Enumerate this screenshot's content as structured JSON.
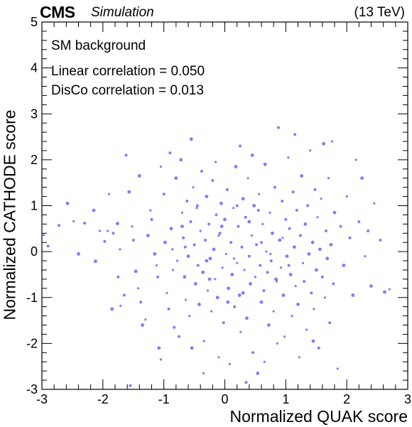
{
  "header": {
    "experiment": "CMS",
    "status": "Simulation",
    "energy": "(13 TeV)"
  },
  "annotations": {
    "sample": "SM background",
    "linear": "Linear correlation = 0.050",
    "disco": "DisCo correlation = 0.013"
  },
  "chart_data": {
    "type": "scatter",
    "xlabel": "Normalized QUAK score",
    "ylabel": "Normalized CATHODE score",
    "xlim": [
      -3,
      3
    ],
    "ylim": [
      -3,
      5
    ],
    "xticks": [
      -3,
      -2,
      -1,
      0,
      1,
      2,
      3
    ],
    "yticks": [
      -3,
      -2,
      -1,
      0,
      1,
      2,
      3,
      4,
      5
    ],
    "grid": false,
    "marker_color": "#5b5bff",
    "points": [
      [
        -2.97,
        0.36
      ],
      [
        -2.72,
        0.57
      ],
      [
        -2.58,
        1.05
      ],
      [
        -2.48,
        0.66
      ],
      [
        -2.3,
        0.62
      ],
      [
        -2.15,
        0.9
      ],
      [
        -2.05,
        0.45
      ],
      [
        -1.97,
        0.22
      ],
      [
        -2.12,
        -0.21
      ],
      [
        -1.92,
        0.45
      ],
      [
        -1.83,
        0.4
      ],
      [
        -1.76,
        0.61
      ],
      [
        -1.72,
        0.05
      ],
      [
        -1.75,
        -0.55
      ],
      [
        -1.85,
        -1.25
      ],
      [
        -1.71,
        -1.18
      ],
      [
        -1.62,
        2.1
      ],
      [
        -1.57,
        1.3
      ],
      [
        -1.52,
        0.55
      ],
      [
        -1.5,
        0.25
      ],
      [
        -1.46,
        -0.43
      ],
      [
        -1.42,
        -0.8
      ],
      [
        -1.38,
        -1.1
      ],
      [
        -1.35,
        -1.6
      ],
      [
        -1.3,
        -1.48
      ],
      [
        -1.55,
        -2.92
      ],
      [
        -1.26,
        0.35
      ],
      [
        -1.22,
        0.9
      ],
      [
        -1.2,
        0.7
      ],
      [
        -1.15,
        -0.05
      ],
      [
        -1.12,
        -0.3
      ],
      [
        -1.1,
        -0.55
      ],
      [
        -1.08,
        -2.1
      ],
      [
        -1.05,
        -2.35
      ],
      [
        -1.0,
        1.25
      ],
      [
        -0.98,
        0.2
      ],
      [
        -0.95,
        -0.9
      ],
      [
        -0.92,
        -1.25
      ],
      [
        -0.88,
        0.5
      ],
      [
        -0.86,
        0.05
      ],
      [
        -0.83,
        -1.65
      ],
      [
        -0.8,
        1.6
      ],
      [
        -0.78,
        -0.2
      ],
      [
        -0.75,
        -1.85
      ],
      [
        -0.72,
        2.0
      ],
      [
        -0.7,
        0.85
      ],
      [
        -0.68,
        0.3
      ],
      [
        -0.66,
        -0.55
      ],
      [
        -0.64,
        -1.05
      ],
      [
        -0.62,
        1.1
      ],
      [
        -0.6,
        -0.1
      ],
      [
        -0.58,
        -1.4
      ],
      [
        -0.56,
        0.65
      ],
      [
        -0.54,
        -2.1
      ],
      [
        -0.52,
        1.4
      ],
      [
        -0.5,
        0.15
      ],
      [
        -0.48,
        -0.7
      ],
      [
        -0.46,
        0.95
      ],
      [
        -0.44,
        -0.3
      ],
      [
        -0.42,
        -1.15
      ],
      [
        -0.4,
        0.45
      ],
      [
        -0.38,
        1.75
      ],
      [
        -0.36,
        -0.45
      ],
      [
        -0.34,
        -1.95
      ],
      [
        -0.32,
        0.25
      ],
      [
        -0.3,
        1.2
      ],
      [
        -0.28,
        -0.85
      ],
      [
        -0.26,
        0.6
      ],
      [
        -0.24,
        -0.15
      ],
      [
        -0.22,
        -1.3
      ],
      [
        -0.2,
        1.55
      ],
      [
        -0.18,
        0.05
      ],
      [
        -0.16,
        -0.6
      ],
      [
        -0.14,
        0.8
      ],
      [
        -0.12,
        -1.0
      ],
      [
        -0.1,
        -2.3
      ],
      [
        -0.08,
        0.4
      ],
      [
        -0.06,
        1.05
      ],
      [
        -0.04,
        -0.35
      ],
      [
        -0.02,
        -1.55
      ],
      [
        0.0,
        0.7
      ],
      [
        0.02,
        -0.05
      ],
      [
        0.04,
        1.35
      ],
      [
        0.06,
        -0.8
      ],
      [
        0.08,
        -2.45
      ],
      [
        0.1,
        0.2
      ],
      [
        0.12,
        -0.5
      ],
      [
        0.14,
        0.95
      ],
      [
        0.16,
        -1.2
      ],
      [
        0.18,
        1.85
      ],
      [
        0.2,
        -0.25
      ],
      [
        0.22,
        0.55
      ],
      [
        0.24,
        -0.95
      ],
      [
        0.26,
        -1.75
      ],
      [
        0.28,
        0.1
      ],
      [
        0.3,
        1.15
      ],
      [
        0.32,
        -0.4
      ],
      [
        0.34,
        0.75
      ],
      [
        0.36,
        -1.45
      ],
      [
        0.38,
        1.6
      ],
      [
        0.4,
        -0.1
      ],
      [
        0.42,
        -0.7
      ],
      [
        0.44,
        0.35
      ],
      [
        0.46,
        -2.2
      ],
      [
        0.48,
        1.0
      ],
      [
        0.5,
        -0.55
      ],
      [
        0.52,
        0.15
      ],
      [
        0.54,
        -2.65
      ],
      [
        0.56,
        1.25
      ],
      [
        0.58,
        -0.3
      ],
      [
        0.6,
        -1.1
      ],
      [
        0.62,
        0.6
      ],
      [
        0.64,
        -0.85
      ],
      [
        0.66,
        1.9
      ],
      [
        0.68,
        0.0
      ],
      [
        0.7,
        -0.45
      ],
      [
        0.72,
        -1.6
      ],
      [
        0.74,
        0.85
      ],
      [
        0.76,
        -0.2
      ],
      [
        0.78,
        0.4
      ],
      [
        0.8,
        -1.3
      ],
      [
        0.82,
        1.4
      ],
      [
        0.84,
        -0.6
      ],
      [
        0.86,
        -2.0
      ],
      [
        0.88,
        2.7
      ],
      [
        0.9,
        0.25
      ],
      [
        0.92,
        -0.35
      ],
      [
        0.94,
        1.1
      ],
      [
        0.96,
        -0.95
      ],
      [
        0.98,
        -1.85
      ],
      [
        1.0,
        0.7
      ],
      [
        1.02,
        -0.1
      ],
      [
        1.04,
        2.05
      ],
      [
        1.06,
        0.5
      ],
      [
        1.08,
        -0.5
      ],
      [
        1.1,
        -1.4
      ],
      [
        1.12,
        1.3
      ],
      [
        1.14,
        0.1
      ],
      [
        1.16,
        -0.75
      ],
      [
        1.18,
        0.9
      ],
      [
        1.2,
        -1.15
      ],
      [
        1.22,
        -2.3
      ],
      [
        1.24,
        0.35
      ],
      [
        1.26,
        1.65
      ],
      [
        1.28,
        -0.25
      ],
      [
        1.3,
        -0.65
      ],
      [
        1.32,
        0.6
      ],
      [
        1.34,
        -1.7
      ],
      [
        1.36,
        1.0
      ],
      [
        1.38,
        -0.05
      ],
      [
        1.4,
        2.2
      ],
      [
        1.42,
        -0.9
      ],
      [
        1.44,
        0.2
      ],
      [
        1.46,
        -1.25
      ],
      [
        1.48,
        1.35
      ],
      [
        1.5,
        -0.4
      ],
      [
        1.52,
        0.75
      ],
      [
        1.54,
        -2.1
      ],
      [
        1.56,
        0.05
      ],
      [
        1.58,
        1.15
      ],
      [
        1.6,
        -0.55
      ],
      [
        1.62,
        2.35
      ],
      [
        1.64,
        -1.0
      ],
      [
        1.66,
        0.45
      ],
      [
        1.68,
        -0.15
      ],
      [
        1.7,
        1.6
      ],
      [
        1.72,
        -1.55
      ],
      [
        1.74,
        0.15
      ],
      [
        1.76,
        2.4
      ],
      [
        1.78,
        -0.7
      ],
      [
        1.8,
        0.85
      ],
      [
        1.85,
        -2.55
      ],
      [
        1.9,
        0.55
      ],
      [
        1.95,
        -0.3
      ],
      [
        2.0,
        1.2
      ],
      [
        2.05,
        0.3
      ],
      [
        2.1,
        -0.95
      ],
      [
        2.15,
        2.0
      ],
      [
        2.2,
        0.65
      ],
      [
        2.25,
        1.6
      ],
      [
        2.3,
        -0.1
      ],
      [
        2.35,
        0.45
      ],
      [
        2.4,
        -0.75
      ],
      [
        2.45,
        1.05
      ],
      [
        2.55,
        0.25
      ],
      [
        2.62,
        -0.88
      ],
      [
        2.7,
        -0.82
      ],
      [
        -2.9,
        0.12
      ],
      [
        -2.4,
        -0.05
      ],
      [
        -1.9,
        1.25
      ],
      [
        -1.65,
        -0.95
      ],
      [
        -1.4,
        1.65
      ],
      [
        -1.05,
        1.85
      ],
      [
        -0.9,
        2.15
      ],
      [
        -0.55,
        2.45
      ],
      [
        -0.15,
        1.95
      ],
      [
        0.25,
        2.3
      ],
      [
        0.45,
        2.1
      ],
      [
        0.65,
        -2.4
      ],
      [
        1.15,
        2.55
      ],
      [
        1.45,
        -1.95
      ],
      [
        -0.35,
        -2.65
      ],
      [
        0.35,
        -2.85
      ],
      [
        -0.05,
        0.55
      ],
      [
        0.15,
        -0.15
      ],
      [
        0.55,
        0.9
      ],
      [
        -0.25,
        -0.6
      ],
      [
        0.75,
        -0.05
      ],
      [
        -0.65,
        0.1
      ],
      [
        0.05,
        -1.1
      ],
      [
        0.95,
        0.3
      ],
      [
        -0.45,
        1.0
      ],
      [
        0.4,
        0.65
      ],
      [
        -0.85,
        -0.4
      ],
      [
        1.05,
        -0.3
      ],
      [
        0.3,
        -0.9
      ],
      [
        -0.1,
        0.35
      ],
      [
        0.6,
        0.2
      ],
      [
        -0.7,
        0.55
      ],
      [
        0.85,
        -0.65
      ],
      [
        0.2,
        1.0
      ],
      [
        -0.3,
        -0.2
      ]
    ]
  }
}
